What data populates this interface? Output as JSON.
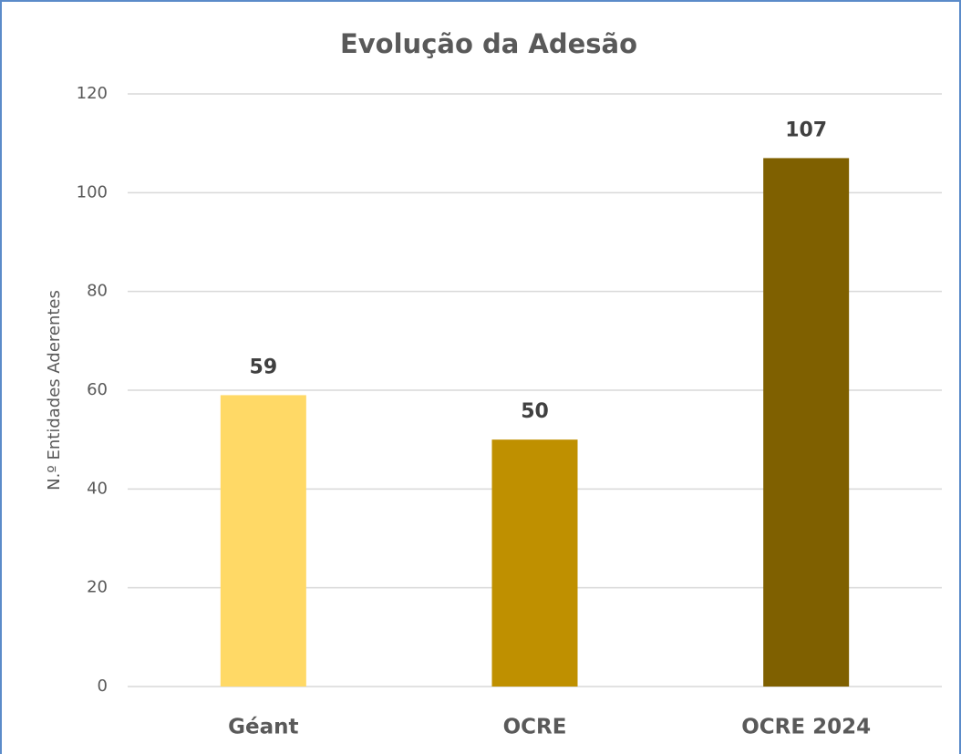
{
  "chart_data": {
    "type": "bar",
    "title": "Evolução da Adesão",
    "y_label": "N.º Entidades Aderentes",
    "categories": [
      "Géant",
      "OCRE",
      "OCRE 2024"
    ],
    "values": [
      59,
      50,
      107
    ],
    "colors": [
      "#FFD966",
      "#BF9000",
      "#7F6000"
    ],
    "ylim": [
      0,
      120
    ],
    "yticks": [
      0,
      20,
      40,
      60,
      80,
      100,
      120
    ],
    "grid": true
  }
}
